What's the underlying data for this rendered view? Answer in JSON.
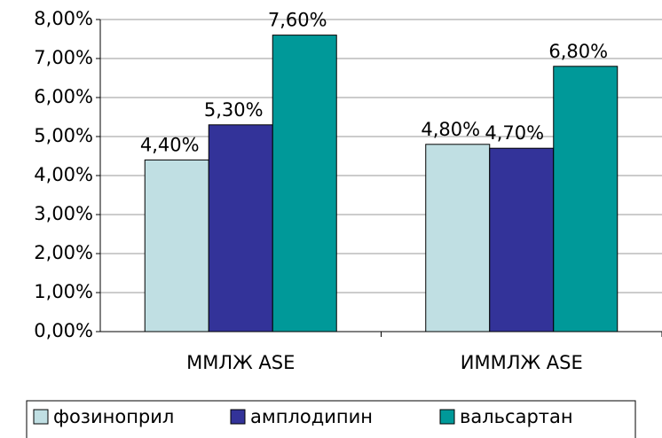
{
  "chart_data": {
    "type": "bar",
    "categories": [
      "ММЛЖ ASE",
      "ИММЛЖ ASE"
    ],
    "series": [
      {
        "name": "фозиноприл",
        "color": "#c0dfe3",
        "values": [
          4.4,
          4.8
        ],
        "value_labels": [
          "4,40%",
          "4,80%"
        ]
      },
      {
        "name": "амплодипин",
        "color": "#333399",
        "values": [
          5.3,
          4.7
        ],
        "value_labels": [
          "5,30%",
          "4,70%"
        ]
      },
      {
        "name": "вальсартан",
        "color": "#009999",
        "values": [
          7.6,
          6.8
        ],
        "value_labels": [
          "7,60%",
          "6,80%"
        ]
      }
    ],
    "ylim": [
      0,
      8
    ],
    "yticks": [
      {
        "value": 0,
        "label": "0,00%"
      },
      {
        "value": 1,
        "label": "1,00%"
      },
      {
        "value": 2,
        "label": "2,00%"
      },
      {
        "value": 3,
        "label": "3,00%"
      },
      {
        "value": 4,
        "label": "4,00%"
      },
      {
        "value": 5,
        "label": "5,00%"
      },
      {
        "value": 6,
        "label": "6,00%"
      },
      {
        "value": 7,
        "label": "7,00%"
      },
      {
        "value": 8,
        "label": "8,00%"
      }
    ],
    "grid": true,
    "legend": "bottom"
  }
}
